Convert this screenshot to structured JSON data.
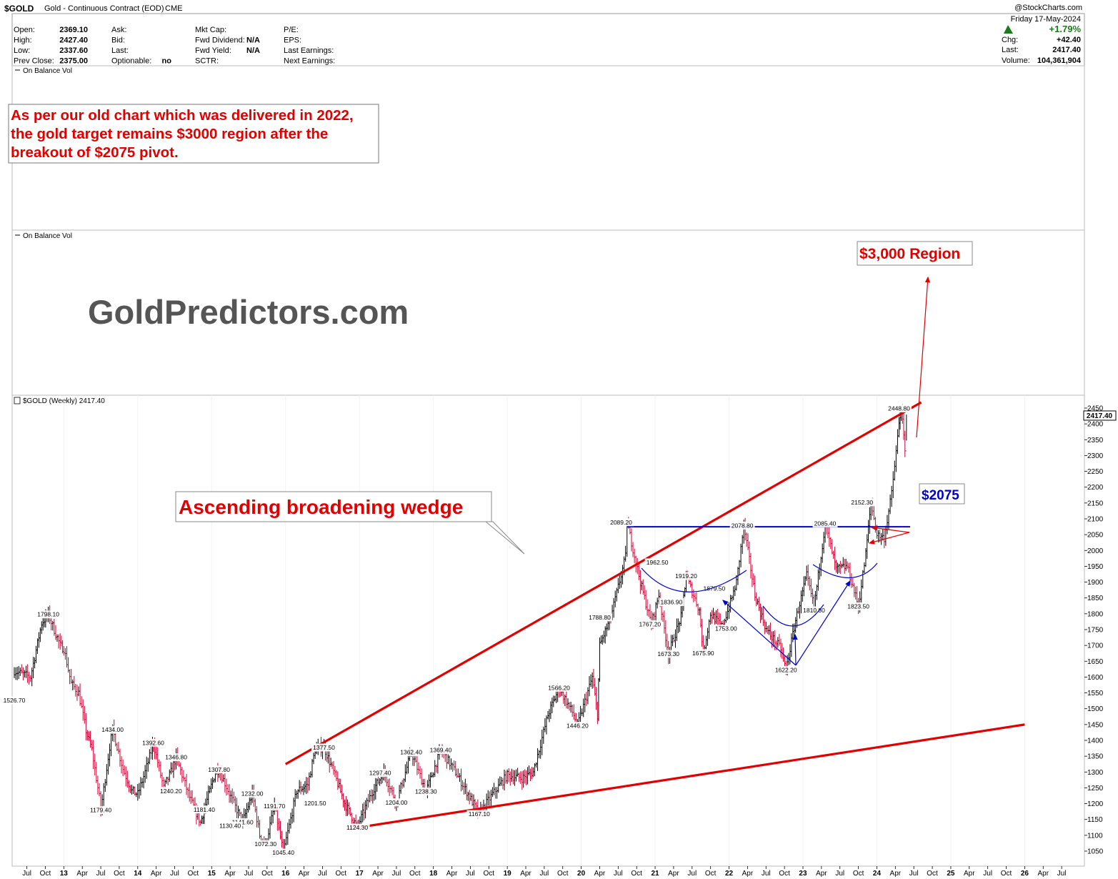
{
  "header": {
    "symbol": "$GOLD",
    "name": "Gold - Continuous Contract (EOD)",
    "exchange": "CME",
    "watermark": "@StockCharts.com",
    "date": "Friday 17-May-2024",
    "stats_left": [
      {
        "label": "Open:",
        "value": "2369.10"
      },
      {
        "label": "High:",
        "value": "2427.40"
      },
      {
        "label": "Low:",
        "value": "2337.60"
      },
      {
        "label": "Prev Close:",
        "value": "2375.00"
      }
    ],
    "stats_mid": [
      {
        "label": "Ask:",
        "value": ""
      },
      {
        "label": "Bid:",
        "value": ""
      },
      {
        "label": "Last:",
        "value": ""
      },
      {
        "label": "Optionable:",
        "value": "no"
      }
    ],
    "stats_mid2": [
      {
        "label": "Mkt Cap:",
        "value": ""
      },
      {
        "label": "Fwd Dividend:",
        "value": "N/A"
      },
      {
        "label": "Fwd Yield:",
        "value": "N/A"
      },
      {
        "label": "SCTR:",
        "value": ""
      }
    ],
    "stats_right": [
      {
        "label": "P/E:"
      },
      {
        "label": "EPS:"
      },
      {
        "label": "Last Earnings:"
      },
      {
        "label": "Next Earnings:"
      }
    ],
    "change_pct": "+1.79%",
    "chg_label": "Chg:",
    "chg_value": "+42.40",
    "last_label": "Last:",
    "last_value": "2417.40",
    "volume_label": "Volume:",
    "volume_value": "104,361,904"
  },
  "panels": {
    "obv1": "On Balance Vol",
    "obv2": "On Balance Vol",
    "price": "$GOLD (Weekly) 2417.40"
  },
  "annotations": {
    "note": [
      "As per our old chart which was delivered in 2022,",
      "the gold target remains $3000 region after the",
      "breakout of $2075 pivot."
    ],
    "brand": "GoldPredictors.com",
    "wedge": "Ascending broadening wedge",
    "target": "$3,000 Region",
    "pivot": "$2075",
    "last_tag": "2417.40"
  },
  "colors": {
    "up": "#000000",
    "down": "#cc0033",
    "trend": "#e00000",
    "pivot": "#0000cc",
    "brand": "#555555"
  },
  "chart_data": {
    "type": "bar",
    "title": "$GOLD (Weekly) 2417.40",
    "ylim": [
      1020,
      2470
    ],
    "y_ticks": [
      1050,
      1100,
      1150,
      1200,
      1250,
      1300,
      1350,
      1400,
      1450,
      1500,
      1550,
      1600,
      1650,
      1700,
      1750,
      1800,
      1850,
      1900,
      1950,
      2000,
      2050,
      2100,
      2150,
      2200,
      2250,
      2300,
      2350,
      2400,
      2450
    ],
    "x_ticks": [
      "Jul",
      "Oct",
      "13",
      "Apr",
      "Jul",
      "Oct",
      "14",
      "Apr",
      "Jul",
      "Oct",
      "15",
      "Apr",
      "Jul",
      "Oct",
      "16",
      "Apr",
      "Jul",
      "Oct",
      "17",
      "Apr",
      "Jul",
      "Oct",
      "18",
      "Apr",
      "Jul",
      "Oct",
      "19",
      "Apr",
      "Jul",
      "Oct",
      "20",
      "Apr",
      "Jul",
      "Oct",
      "21",
      "Apr",
      "Jul",
      "Oct",
      "22",
      "Apr",
      "Jul",
      "Oct",
      "23",
      "Apr",
      "Jul",
      "Oct",
      "24",
      "Apr",
      "Jul",
      "Oct",
      "25",
      "Apr",
      "Jul",
      "Oct",
      "26",
      "Apr",
      "Jul"
    ],
    "x_range": [
      2012.33,
      2026.75
    ],
    "series": [
      {
        "values": [
          [
            2012.33,
            1620
          ],
          [
            2012.55,
            1600
          ],
          [
            2012.7,
            1770
          ],
          [
            2012.79,
            1798.1
          ],
          [
            2012.95,
            1700
          ],
          [
            2013.0,
            1690
          ],
          [
            2013.1,
            1580
          ],
          [
            2013.2,
            1550
          ],
          [
            2013.3,
            1430
          ],
          [
            2013.38,
            1370
          ],
          [
            2013.48,
            1220
          ],
          [
            2013.5,
            1179.4
          ],
          [
            2013.62,
            1380
          ],
          [
            2013.66,
            1434
          ],
          [
            2013.8,
            1310
          ],
          [
            2013.92,
            1240
          ],
          [
            2014.0,
            1230
          ],
          [
            2014.1,
            1300
          ],
          [
            2014.2,
            1380
          ],
          [
            2014.21,
            1392.6
          ],
          [
            2014.35,
            1250
          ],
          [
            2014.45,
            1300
          ],
          [
            2014.52,
            1346.8
          ],
          [
            2014.7,
            1220
          ],
          [
            2014.85,
            1140
          ],
          [
            2014.9,
            1181.4
          ],
          [
            2015.05,
            1300
          ],
          [
            2015.1,
            1307.8
          ],
          [
            2015.3,
            1200
          ],
          [
            2015.42,
            1141.6
          ],
          [
            2015.55,
            1232
          ],
          [
            2015.65,
            1100
          ],
          [
            2015.73,
            1072.3
          ],
          [
            2015.85,
            1191.7
          ],
          [
            2015.97,
            1045.4
          ],
          [
            2016.05,
            1130
          ],
          [
            2016.15,
            1240
          ],
          [
            2016.3,
            1260
          ],
          [
            2016.4,
            1370
          ],
          [
            2016.52,
            1377.5
          ],
          [
            2016.65,
            1300
          ],
          [
            2016.8,
            1201.5
          ],
          [
            2016.97,
            1124.3
          ],
          [
            2017.1,
            1200
          ],
          [
            2017.2,
            1250
          ],
          [
            2017.33,
            1297.4
          ],
          [
            2017.5,
            1204
          ],
          [
            2017.7,
            1362.4
          ],
          [
            2017.9,
            1238.3
          ],
          [
            2018.1,
            1369.4
          ],
          [
            2018.3,
            1300
          ],
          [
            2018.62,
            1167.1
          ],
          [
            2018.8,
            1230
          ],
          [
            2019.0,
            1290
          ],
          [
            2019.2,
            1280
          ],
          [
            2019.35,
            1300
          ],
          [
            2019.55,
            1480
          ],
          [
            2019.7,
            1566.2
          ],
          [
            2019.9,
            1480
          ],
          [
            2019.95,
            1446.2
          ],
          [
            2020.15,
            1600
          ],
          [
            2020.22,
            1480
          ],
          [
            2020.25,
            1700
          ],
          [
            2020.4,
            1788.8
          ],
          [
            2020.6,
            1980
          ],
          [
            2020.62,
            2089.2
          ],
          [
            2020.8,
            1900
          ],
          [
            2020.95,
            1767.2
          ],
          [
            2021.05,
            1860
          ],
          [
            2021.18,
            1673.3
          ],
          [
            2021.35,
            1790
          ],
          [
            2021.42,
            1919.2
          ],
          [
            2021.6,
            1810
          ],
          [
            2021.65,
            1675.9
          ],
          [
            2021.75,
            1800
          ],
          [
            2021.9,
            1760
          ],
          [
            2022.0,
            1820
          ],
          [
            2022.1,
            1900
          ],
          [
            2022.2,
            2078.8
          ],
          [
            2022.35,
            1860
          ],
          [
            2022.5,
            1750
          ],
          [
            2022.7,
            1690
          ],
          [
            2022.77,
            1622.2
          ],
          [
            2022.9,
            1780
          ],
          [
            2023.05,
            1920
          ],
          [
            2023.15,
            1820
          ],
          [
            2023.3,
            2085.4
          ],
          [
            2023.45,
            1940
          ],
          [
            2023.6,
            1950
          ],
          [
            2023.75,
            1823.5
          ],
          [
            2023.85,
            1990
          ],
          [
            2023.92,
            2152.3
          ],
          [
            2024.0,
            2050
          ],
          [
            2024.1,
            2040
          ],
          [
            2024.2,
            2180
          ],
          [
            2024.3,
            2400
          ],
          [
            2024.33,
            2448.8
          ],
          [
            2024.38,
            2310
          ],
          [
            2024.4,
            2417.4
          ]
        ]
      }
    ],
    "peak_labels": [
      {
        "x": 2012.33,
        "y": 1526.7,
        "text": "1526.70"
      },
      {
        "x": 2012.79,
        "y": 1798.1,
        "text": "1798.10"
      },
      {
        "x": 2013.5,
        "y": 1179.4,
        "text": "1179.40"
      },
      {
        "x": 2013.66,
        "y": 1434.0,
        "text": "1434.00"
      },
      {
        "x": 2014.21,
        "y": 1392.6,
        "text": "1392.60"
      },
      {
        "x": 2014.52,
        "y": 1346.8,
        "text": "1346.80"
      },
      {
        "x": 2014.45,
        "y": 1240.2,
        "text": "1240.20"
      },
      {
        "x": 2014.9,
        "y": 1181.4,
        "text": "1181.40"
      },
      {
        "x": 2015.1,
        "y": 1307.8,
        "text": "1307.80"
      },
      {
        "x": 2015.55,
        "y": 1232.0,
        "text": "1232.00"
      },
      {
        "x": 2015.42,
        "y": 1141.6,
        "text": "1141.60"
      },
      {
        "x": 2015.25,
        "y": 1130.4,
        "text": "1130.40"
      },
      {
        "x": 2015.85,
        "y": 1191.7,
        "text": "1191.70"
      },
      {
        "x": 2015.73,
        "y": 1072.3,
        "text": "1072.30"
      },
      {
        "x": 2015.97,
        "y": 1045.4,
        "text": "1045.40"
      },
      {
        "x": 2016.52,
        "y": 1377.5,
        "text": "1377.50"
      },
      {
        "x": 2016.4,
        "y": 1201.5,
        "text": "1201.50"
      },
      {
        "x": 2016.97,
        "y": 1124.3,
        "text": "1124.30"
      },
      {
        "x": 2017.28,
        "y": 1297.4,
        "text": "1297.40"
      },
      {
        "x": 2017.5,
        "y": 1204.0,
        "text": "1204.00"
      },
      {
        "x": 2017.7,
        "y": 1362.4,
        "text": "1362.40"
      },
      {
        "x": 2017.9,
        "y": 1238.3,
        "text": "1238.30"
      },
      {
        "x": 2018.1,
        "y": 1369.4,
        "text": "1369.40"
      },
      {
        "x": 2018.62,
        "y": 1167.1,
        "text": "1167.10"
      },
      {
        "x": 2019.7,
        "y": 1566.2,
        "text": "1566.20"
      },
      {
        "x": 2019.95,
        "y": 1446.2,
        "text": "1446.20"
      },
      {
        "x": 2020.25,
        "y": 1788.8,
        "text": "1788.80"
      },
      {
        "x": 2020.54,
        "y": 2089.2,
        "text": "2089.20"
      },
      {
        "x": 2021.03,
        "y": 1962.5,
        "text": "1962.50"
      },
      {
        "x": 2021.42,
        "y": 1919.2,
        "text": "1919.20"
      },
      {
        "x": 2021.22,
        "y": 1836.9,
        "text": "1836.90"
      },
      {
        "x": 2021.8,
        "y": 1879.5,
        "text": "1879.50"
      },
      {
        "x": 2020.93,
        "y": 1767.2,
        "text": "1767.20"
      },
      {
        "x": 2021.18,
        "y": 1673.3,
        "text": "1673.30"
      },
      {
        "x": 2021.65,
        "y": 1675.9,
        "text": "1675.90"
      },
      {
        "x": 2021.96,
        "y": 1753.0,
        "text": "1753.00"
      },
      {
        "x": 2022.18,
        "y": 2078.8,
        "text": "2078.80"
      },
      {
        "x": 2022.77,
        "y": 1622.2,
        "text": "1622.20"
      },
      {
        "x": 2023.15,
        "y": 1810.8,
        "text": "1810.80"
      },
      {
        "x": 2023.3,
        "y": 2085.4,
        "text": "2085.40"
      },
      {
        "x": 2023.75,
        "y": 1823.5,
        "text": "1823.50"
      },
      {
        "x": 2023.8,
        "y": 2152.3,
        "text": "2152.30"
      },
      {
        "x": 2024.3,
        "y": 2448.8,
        "text": "2448.80"
      }
    ],
    "trendlines": [
      {
        "name": "upper",
        "from": [
          2016.0,
          1325
        ],
        "to": [
          2024.6,
          2468
        ]
      },
      {
        "name": "lower",
        "from": [
          2016.85,
          1120
        ],
        "to": [
          2026.0,
          1450
        ]
      },
      {
        "name": "pivot",
        "from": [
          2020.62,
          2075
        ],
        "to": [
          2024.45,
          2075
        ]
      }
    ]
  }
}
